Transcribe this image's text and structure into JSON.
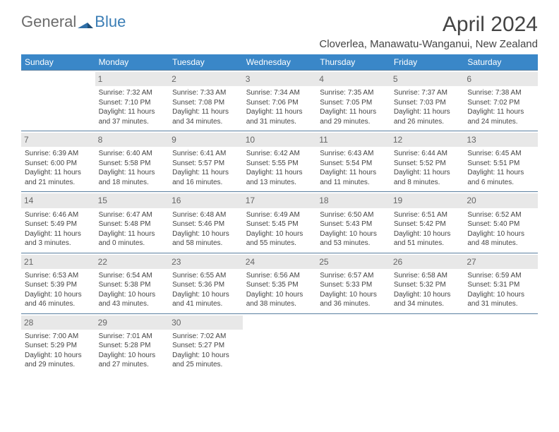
{
  "logo": {
    "text1": "General",
    "text2": "Blue"
  },
  "title": {
    "month": "April 2024",
    "location": "Cloverlea, Manawatu-Wanganui, New Zealand"
  },
  "header_bg": "#3a87c8",
  "header_text": "#ffffff",
  "daynum_bg": "#e8e8e8",
  "row_border": "#5a7fa0",
  "days": [
    "Sunday",
    "Monday",
    "Tuesday",
    "Wednesday",
    "Thursday",
    "Friday",
    "Saturday"
  ],
  "weeks": [
    [
      null,
      {
        "n": "1",
        "sunrise": "7:32 AM",
        "sunset": "7:10 PM",
        "daylight": "11 hours and 37 minutes."
      },
      {
        "n": "2",
        "sunrise": "7:33 AM",
        "sunset": "7:08 PM",
        "daylight": "11 hours and 34 minutes."
      },
      {
        "n": "3",
        "sunrise": "7:34 AM",
        "sunset": "7:06 PM",
        "daylight": "11 hours and 31 minutes."
      },
      {
        "n": "4",
        "sunrise": "7:35 AM",
        "sunset": "7:05 PM",
        "daylight": "11 hours and 29 minutes."
      },
      {
        "n": "5",
        "sunrise": "7:37 AM",
        "sunset": "7:03 PM",
        "daylight": "11 hours and 26 minutes."
      },
      {
        "n": "6",
        "sunrise": "7:38 AM",
        "sunset": "7:02 PM",
        "daylight": "11 hours and 24 minutes."
      }
    ],
    [
      {
        "n": "7",
        "sunrise": "6:39 AM",
        "sunset": "6:00 PM",
        "daylight": "11 hours and 21 minutes."
      },
      {
        "n": "8",
        "sunrise": "6:40 AM",
        "sunset": "5:58 PM",
        "daylight": "11 hours and 18 minutes."
      },
      {
        "n": "9",
        "sunrise": "6:41 AM",
        "sunset": "5:57 PM",
        "daylight": "11 hours and 16 minutes."
      },
      {
        "n": "10",
        "sunrise": "6:42 AM",
        "sunset": "5:55 PM",
        "daylight": "11 hours and 13 minutes."
      },
      {
        "n": "11",
        "sunrise": "6:43 AM",
        "sunset": "5:54 PM",
        "daylight": "11 hours and 11 minutes."
      },
      {
        "n": "12",
        "sunrise": "6:44 AM",
        "sunset": "5:52 PM",
        "daylight": "11 hours and 8 minutes."
      },
      {
        "n": "13",
        "sunrise": "6:45 AM",
        "sunset": "5:51 PM",
        "daylight": "11 hours and 6 minutes."
      }
    ],
    [
      {
        "n": "14",
        "sunrise": "6:46 AM",
        "sunset": "5:49 PM",
        "daylight": "11 hours and 3 minutes."
      },
      {
        "n": "15",
        "sunrise": "6:47 AM",
        "sunset": "5:48 PM",
        "daylight": "11 hours and 0 minutes."
      },
      {
        "n": "16",
        "sunrise": "6:48 AM",
        "sunset": "5:46 PM",
        "daylight": "10 hours and 58 minutes."
      },
      {
        "n": "17",
        "sunrise": "6:49 AM",
        "sunset": "5:45 PM",
        "daylight": "10 hours and 55 minutes."
      },
      {
        "n": "18",
        "sunrise": "6:50 AM",
        "sunset": "5:43 PM",
        "daylight": "10 hours and 53 minutes."
      },
      {
        "n": "19",
        "sunrise": "6:51 AM",
        "sunset": "5:42 PM",
        "daylight": "10 hours and 51 minutes."
      },
      {
        "n": "20",
        "sunrise": "6:52 AM",
        "sunset": "5:40 PM",
        "daylight": "10 hours and 48 minutes."
      }
    ],
    [
      {
        "n": "21",
        "sunrise": "6:53 AM",
        "sunset": "5:39 PM",
        "daylight": "10 hours and 46 minutes."
      },
      {
        "n": "22",
        "sunrise": "6:54 AM",
        "sunset": "5:38 PM",
        "daylight": "10 hours and 43 minutes."
      },
      {
        "n": "23",
        "sunrise": "6:55 AM",
        "sunset": "5:36 PM",
        "daylight": "10 hours and 41 minutes."
      },
      {
        "n": "24",
        "sunrise": "6:56 AM",
        "sunset": "5:35 PM",
        "daylight": "10 hours and 38 minutes."
      },
      {
        "n": "25",
        "sunrise": "6:57 AM",
        "sunset": "5:33 PM",
        "daylight": "10 hours and 36 minutes."
      },
      {
        "n": "26",
        "sunrise": "6:58 AM",
        "sunset": "5:32 PM",
        "daylight": "10 hours and 34 minutes."
      },
      {
        "n": "27",
        "sunrise": "6:59 AM",
        "sunset": "5:31 PM",
        "daylight": "10 hours and 31 minutes."
      }
    ],
    [
      {
        "n": "28",
        "sunrise": "7:00 AM",
        "sunset": "5:29 PM",
        "daylight": "10 hours and 29 minutes."
      },
      {
        "n": "29",
        "sunrise": "7:01 AM",
        "sunset": "5:28 PM",
        "daylight": "10 hours and 27 minutes."
      },
      {
        "n": "30",
        "sunrise": "7:02 AM",
        "sunset": "5:27 PM",
        "daylight": "10 hours and 25 minutes."
      },
      null,
      null,
      null,
      null
    ]
  ],
  "labels": {
    "sunrise": "Sunrise: ",
    "sunset": "Sunset: ",
    "daylight": "Daylight: "
  }
}
